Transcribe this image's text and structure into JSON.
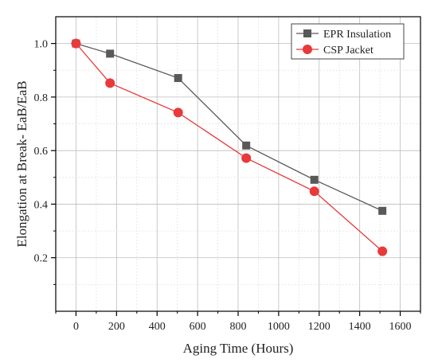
{
  "chart_data": {
    "type": "line",
    "xlabel": "Aging Time (Hours)",
    "ylabel": "Elongation at Break- EaB/EaB",
    "xlim": [
      -100,
      1700
    ],
    "ylim": [
      0.0,
      1.1
    ],
    "x_ticks": [
      0,
      200,
      400,
      600,
      800,
      1000,
      1200,
      1400,
      1600
    ],
    "y_ticks": [
      0.2,
      0.4,
      0.6,
      0.8,
      1.0
    ],
    "x_tick_labels": [
      "0",
      "200",
      "400",
      "600",
      "800",
      "1000",
      "1200",
      "1400",
      "1600"
    ],
    "y_tick_labels": [
      "0.2",
      "0.4",
      "0.6",
      "0.8",
      "1.0"
    ],
    "grid": true,
    "legend_position": "top-right",
    "series": [
      {
        "name": "EPR Insulation",
        "marker": "square",
        "color": "#595959",
        "x": [
          0,
          168,
          504,
          840,
          1176,
          1512
        ],
        "y": [
          1.0,
          0.962,
          0.871,
          0.619,
          0.491,
          0.375
        ]
      },
      {
        "name": "CSP Jacket",
        "marker": "circle",
        "color": "#e8393b",
        "x": [
          0,
          168,
          504,
          840,
          1176,
          1512
        ],
        "y": [
          1.0,
          0.852,
          0.742,
          0.572,
          0.448,
          0.224
        ]
      }
    ]
  }
}
